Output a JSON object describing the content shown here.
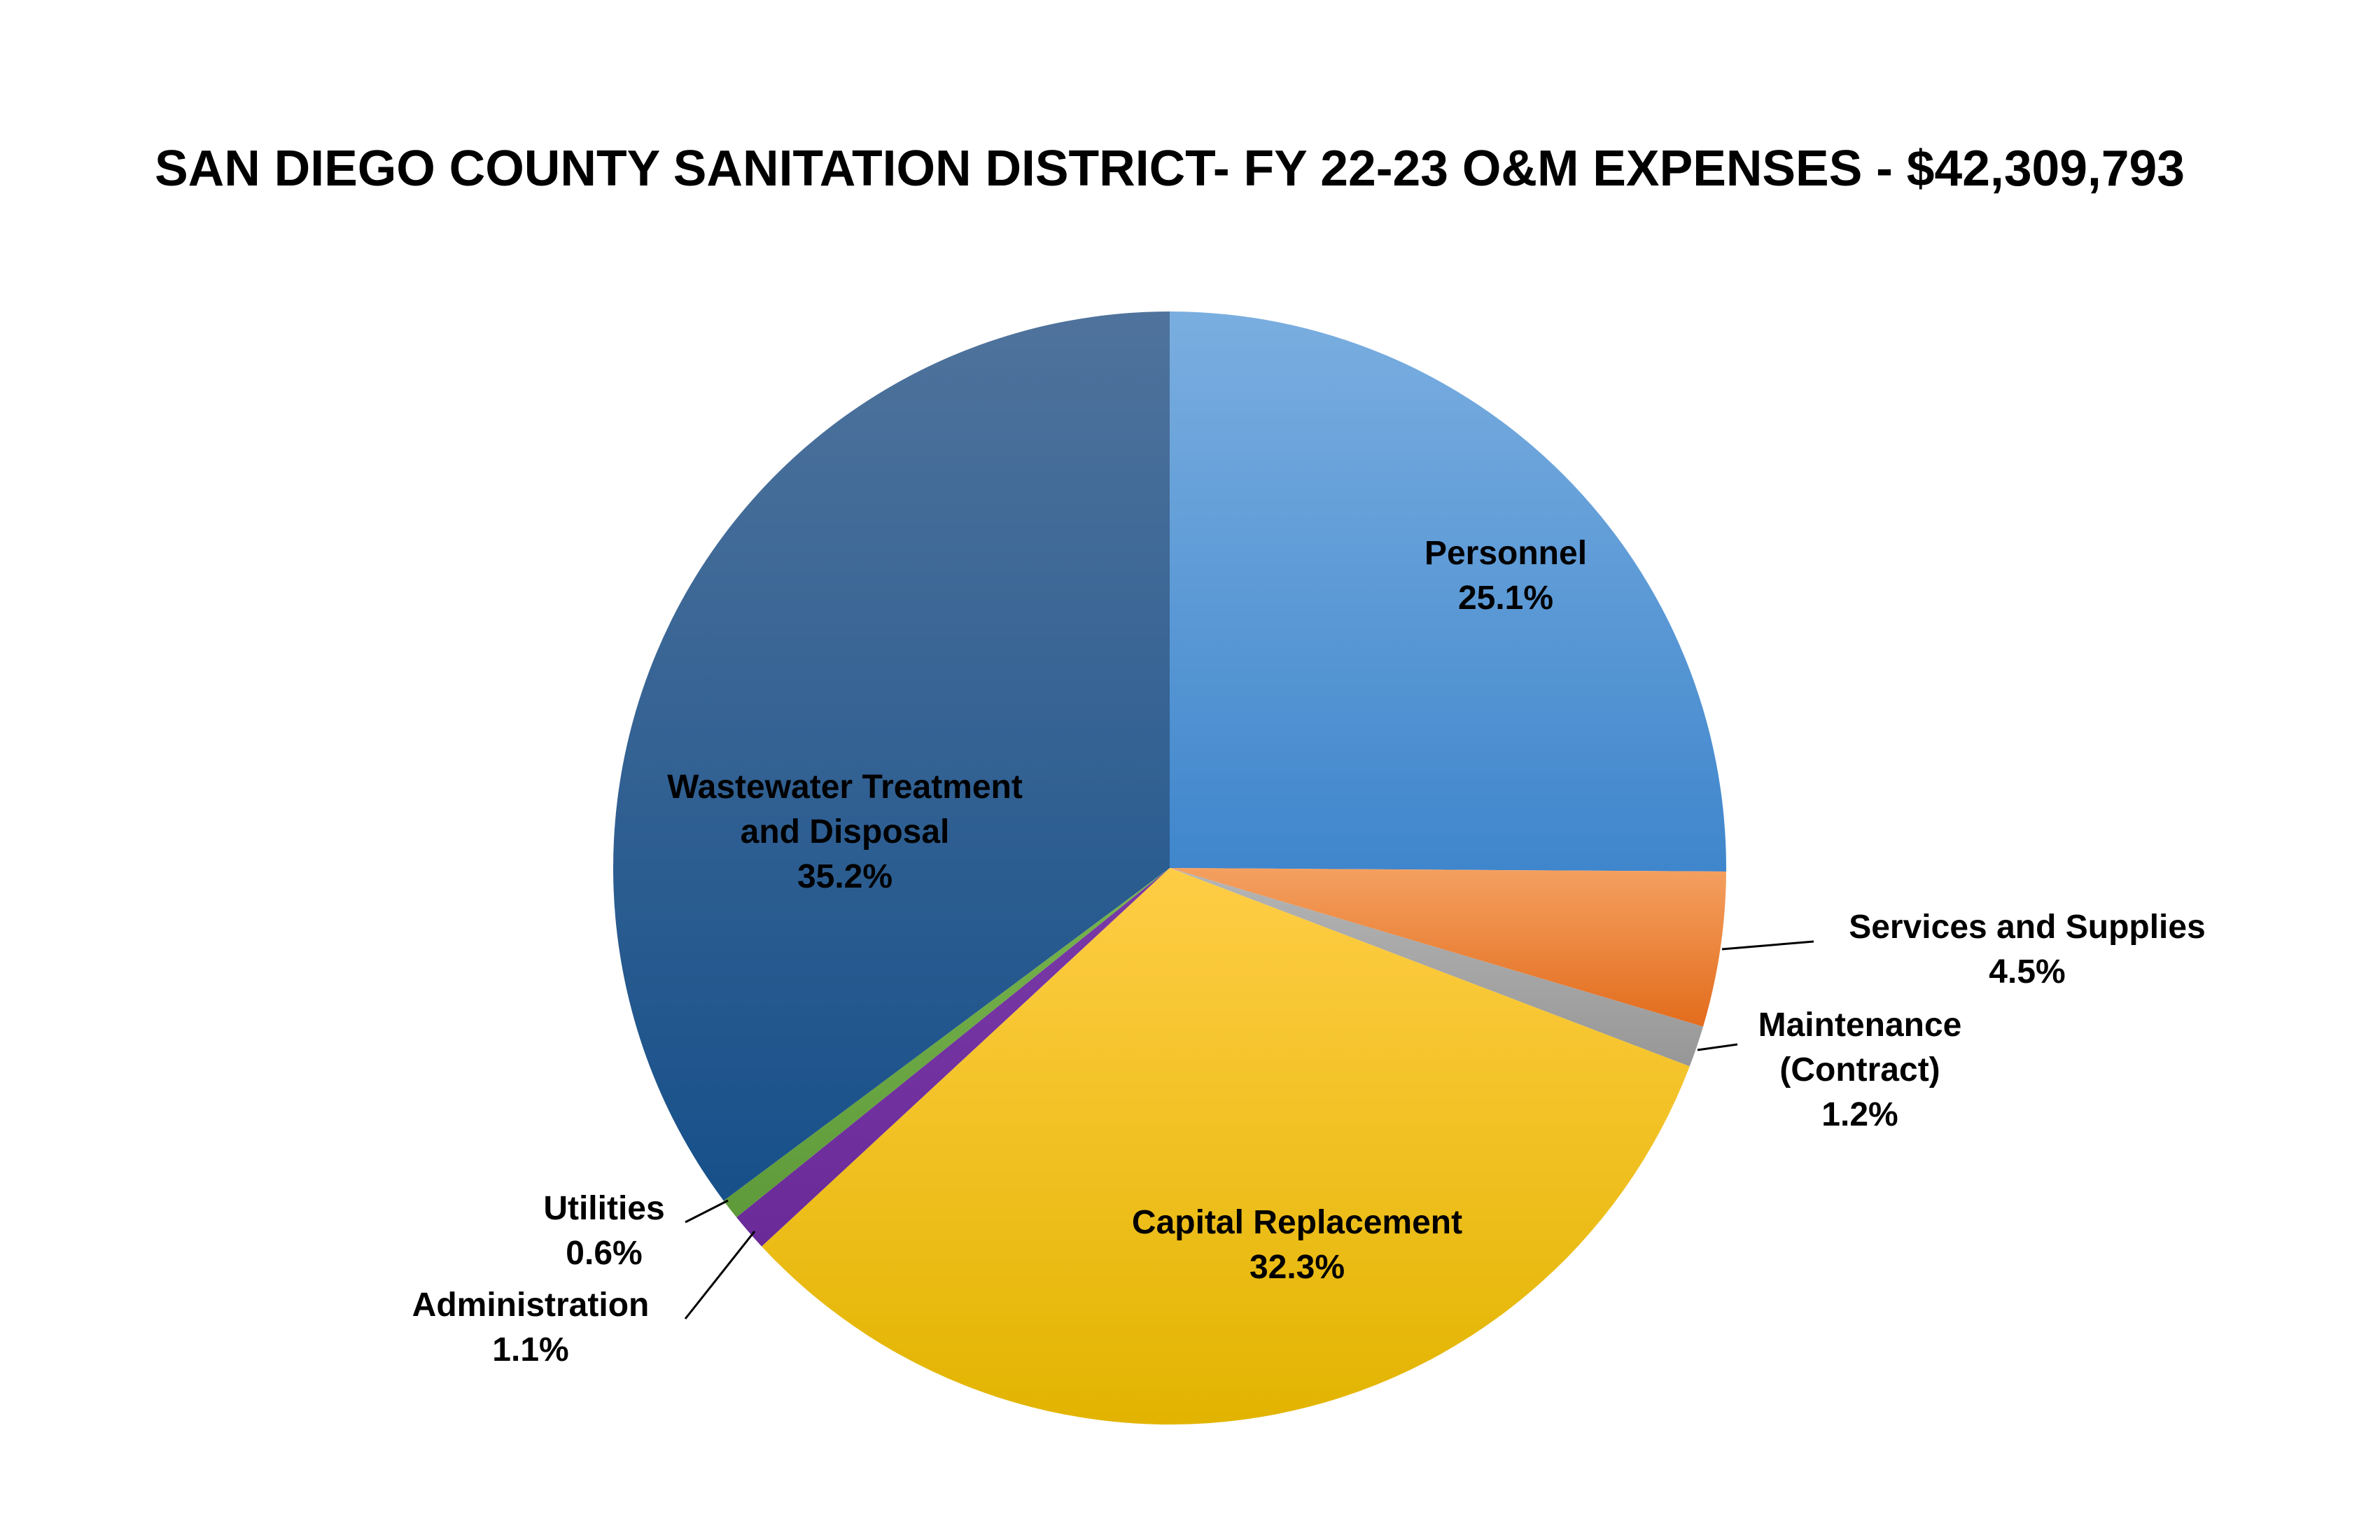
{
  "chart_data": {
    "type": "pie",
    "title": "SAN DIEGO COUNTY SANITATION DISTRICT- FY 22-23 O&M EXPENSES - $42,309,793",
    "start": "12 o'clock, clockwise",
    "slices": [
      {
        "label": [
          "Personnel"
        ],
        "pct_label": "25.1%",
        "value": 25.1,
        "colors": [
          "#7aaee0",
          "#3f86cc"
        ]
      },
      {
        "label": [
          "Services and Supplies"
        ],
        "pct_label": "4.5%",
        "value": 4.5,
        "colors": [
          "#f4a060",
          "#e36c1c"
        ]
      },
      {
        "label": [
          "Maintenance",
          "(Contract)"
        ],
        "pct_label": "1.2%",
        "value": 1.2,
        "colors": [
          "#b5b5b5",
          "#979797"
        ]
      },
      {
        "label": [
          "Capital Replacement"
        ],
        "pct_label": "32.3%",
        "value": 32.3,
        "colors": [
          "#ffcd45",
          "#e2b400"
        ]
      },
      {
        "label": [
          "Administration"
        ],
        "pct_label": "1.1%",
        "value": 1.1,
        "colors": [
          "#7a3aa8",
          "#6a2a98"
        ]
      },
      {
        "label": [
          "Utilities"
        ],
        "pct_label": "0.6%",
        "value": 0.6,
        "colors": [
          "#78b54e",
          "#5f9a3a"
        ]
      },
      {
        "label": [
          "Wastewater Treatment",
          "and Disposal"
        ],
        "pct_label": "35.2%",
        "value": 35.2,
        "colors": [
          "#4f739c",
          "#17508a"
        ]
      }
    ]
  }
}
